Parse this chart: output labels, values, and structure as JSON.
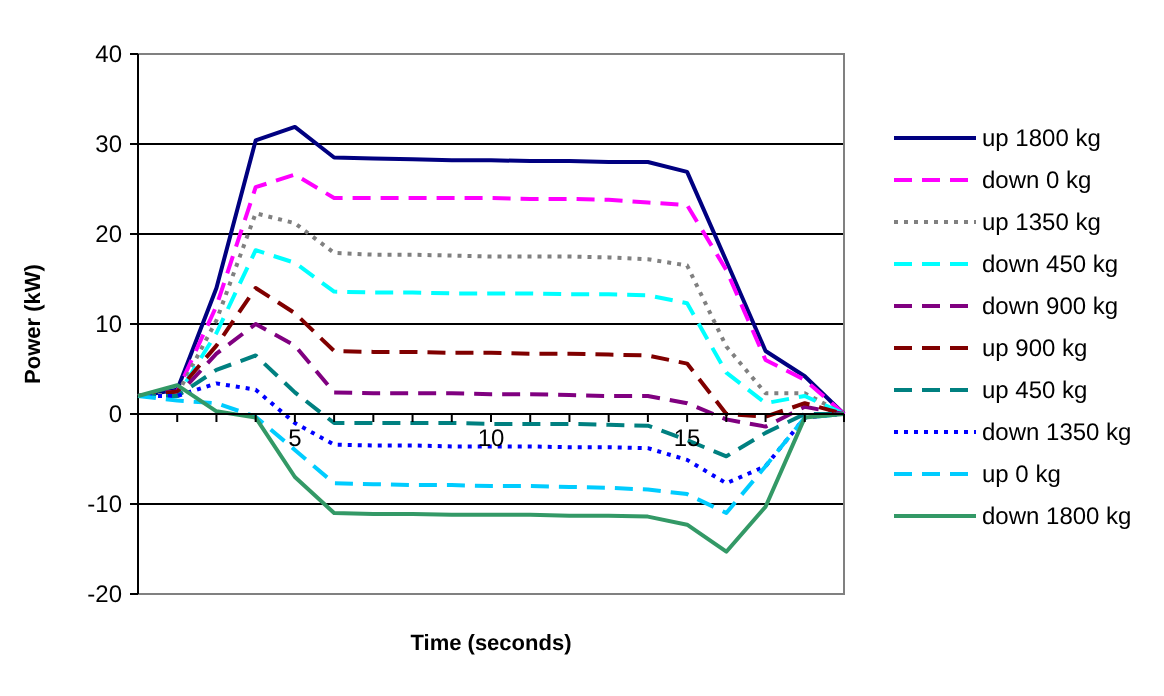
{
  "chart_data": {
    "type": "line",
    "xlabel": "Time (seconds)",
    "ylabel": "Power (kW)",
    "categories": [
      null,
      null,
      null,
      null,
      "5",
      null,
      null,
      null,
      null,
      "10",
      null,
      null,
      null,
      null,
      "15",
      null,
      null,
      null,
      null
    ],
    "ylim": [
      -20,
      40
    ],
    "yticks": [
      -20,
      -10,
      0,
      10,
      20,
      30,
      40
    ],
    "grid": "y",
    "legend": "right",
    "marker": "none",
    "series": [
      {
        "name": "up 1800 kg",
        "color": "#000080",
        "line_style": "solid",
        "values": [
          2,
          2.7,
          14,
          30.4,
          31.9,
          28.5,
          28.4,
          28.3,
          28.2,
          28.2,
          28.1,
          28.1,
          28,
          28,
          26.9,
          17,
          7,
          4.2,
          0
        ]
      },
      {
        "name": "down 0 kg",
        "color": "#ff00ff",
        "line_style": "dashed",
        "values": [
          2,
          2.5,
          12,
          25.2,
          26.6,
          24,
          24,
          24,
          24,
          24,
          23.9,
          23.9,
          23.8,
          23.5,
          23.2,
          16,
          6,
          3.8,
          0
        ]
      },
      {
        "name": "up 1350 kg",
        "color": "#808080",
        "line_style": "dotted",
        "values": [
          2,
          2.2,
          10.4,
          22.3,
          21.2,
          17.9,
          17.7,
          17.7,
          17.6,
          17.5,
          17.5,
          17.5,
          17.4,
          17.2,
          16.5,
          7.5,
          2.3,
          2.3,
          0
        ]
      },
      {
        "name": "down 450 kg",
        "color": "#00ffff",
        "line_style": "dashed",
        "values": [
          2,
          2,
          9,
          18.2,
          16.8,
          13.6,
          13.5,
          13.5,
          13.4,
          13.4,
          13.4,
          13.3,
          13.3,
          13.2,
          12.3,
          4.6,
          1.2,
          2,
          0
        ]
      },
      {
        "name": "down 900 kg",
        "color": "#800080",
        "line_style": "dashed",
        "values": [
          2,
          2,
          6.7,
          10,
          7.6,
          2.4,
          2.3,
          2.3,
          2.3,
          2.2,
          2.2,
          2.1,
          2,
          2,
          1.2,
          -0.6,
          -1.4,
          0.8,
          0
        ]
      },
      {
        "name": "up 900 kg",
        "color": "#800000",
        "line_style": "dashed",
        "values": [
          2,
          2.5,
          7.6,
          14,
          11.2,
          7,
          6.9,
          6.9,
          6.8,
          6.8,
          6.7,
          6.7,
          6.6,
          6.5,
          5.6,
          0,
          -0.3,
          1.2,
          0
        ]
      },
      {
        "name": "up 450 kg",
        "color": "#008080",
        "line_style": "dashed",
        "values": [
          2,
          2,
          4.9,
          6.5,
          2.4,
          -1,
          -1,
          -1,
          -1,
          -1.1,
          -1.1,
          -1.1,
          -1.2,
          -1.3,
          -2.9,
          -4.7,
          -2.1,
          0,
          0
        ]
      },
      {
        "name": "down 1350 kg",
        "color": "#0000ff",
        "line_style": "dotted",
        "values": [
          2,
          2,
          3.4,
          2.7,
          -1,
          -3.4,
          -3.5,
          -3.5,
          -3.6,
          -3.6,
          -3.6,
          -3.7,
          -3.7,
          -3.8,
          -5.1,
          -7.7,
          -5.8,
          -0.4,
          0
        ]
      },
      {
        "name": "up 0 kg",
        "color": "#00ccff",
        "line_style": "dashed",
        "values": [
          2,
          1.5,
          1.2,
          -0.3,
          -4,
          -7.7,
          -7.8,
          -7.9,
          -7.9,
          -8,
          -8,
          -8.1,
          -8.2,
          -8.4,
          -8.9,
          -11,
          -5.8,
          -0.4,
          0
        ]
      },
      {
        "name": "down 1800 kg",
        "color": "#339966",
        "line_style": "solid",
        "values": [
          2,
          3.2,
          0.3,
          -0.4,
          -7,
          -11,
          -11.1,
          -11.1,
          -11.2,
          -11.2,
          -11.2,
          -11.3,
          -11.3,
          -11.4,
          -12.3,
          -15.3,
          -10.3,
          -0.4,
          0
        ]
      }
    ]
  }
}
